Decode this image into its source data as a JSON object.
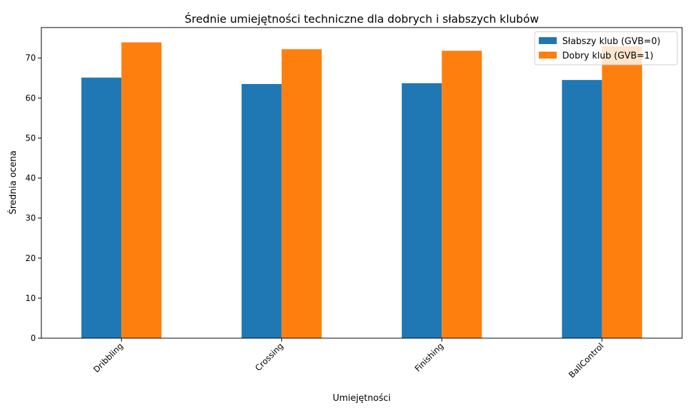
{
  "chart_data": {
    "type": "bar",
    "title": "Średnie umiejętności techniczne dla dobrych i słabszych klubów",
    "xlabel": "Umiejętności",
    "ylabel": "Średnia ocena",
    "categories": [
      "Dribbling",
      "Crossing",
      "Finishing",
      "BallControl"
    ],
    "series": [
      {
        "name": "Słabszy klub (GVB=0)",
        "color": "#1f77b4",
        "values": [
          65.1,
          63.5,
          63.7,
          64.5
        ]
      },
      {
        "name": "Dobry klub (GVB=1)",
        "color": "#ff7f0e",
        "values": [
          73.9,
          72.2,
          71.8,
          72.9
        ]
      }
    ],
    "ylim": [
      0,
      77.6
    ],
    "yticks": [
      0,
      10,
      20,
      30,
      40,
      50,
      60,
      70
    ],
    "grid": false,
    "legend_position": "top-right",
    "xtick_rotation_deg": 45
  }
}
